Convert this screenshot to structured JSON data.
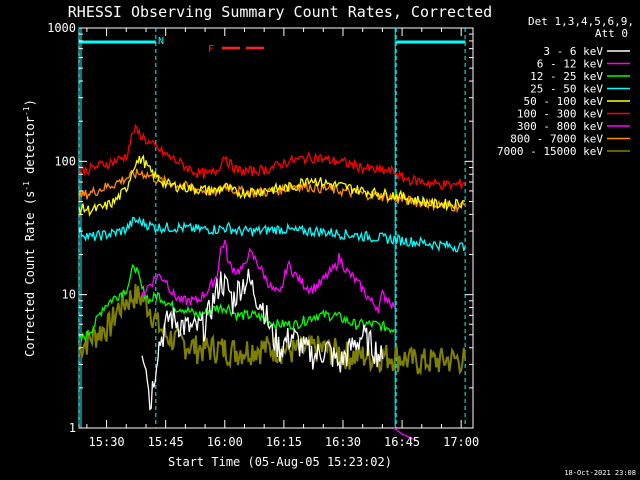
{
  "chart_data": {
    "type": "line",
    "title": "RHESSI Observing Summary Count Rates, Corrected",
    "xlabel": "Start Time (05-Aug-05 15:23:02)",
    "ylabel_main": "Corrected Count Rate (s",
    "ylabel_sup1": "-1",
    "ylabel_mid": " detector",
    "ylabel_sup2": "-1",
    "ylabel_end": ")",
    "yscale": "log",
    "ylim": [
      1,
      1000
    ],
    "xlim_minutes": [
      0,
      100
    ],
    "yticks": [
      {
        "value": 1,
        "label": "1"
      },
      {
        "value": 10,
        "label": "10"
      },
      {
        "value": 100,
        "label": "100"
      },
      {
        "value": 1000,
        "label": "1000"
      }
    ],
    "xticks": [
      {
        "minute": 7,
        "label": "15:30"
      },
      {
        "minute": 22,
        "label": "15:45"
      },
      {
        "minute": 37,
        "label": "16:00"
      },
      {
        "minute": 52,
        "label": "16:15"
      },
      {
        "minute": 67,
        "label": "16:30"
      },
      {
        "minute": 82,
        "label": "16:45"
      },
      {
        "minute": 97,
        "label": "17:00"
      }
    ],
    "detector_info": [
      "Det 1,3,4,5,6,9,",
      "Att 0"
    ],
    "timestamp": "18-Oct-2021 23:08",
    "markers": [
      {
        "label": "N",
        "color": "#00ffff"
      },
      {
        "label": "F",
        "color": "#ff2222"
      }
    ],
    "night_minutes": [
      [
        0,
        19.5
      ],
      [
        80.5,
        98
      ]
    ],
    "flare_minutes": [
      35,
      48
    ],
    "series": [
      {
        "name": "3 - 6 keV",
        "color": "#ffffff",
        "values": [
          [
            16,
            4
          ],
          [
            17,
            3.3
          ],
          [
            18,
            1.5
          ],
          [
            19,
            2.4
          ],
          [
            20,
            4
          ],
          [
            23,
            7
          ],
          [
            26,
            6
          ],
          [
            29,
            5.5
          ],
          [
            32,
            6
          ],
          [
            35,
            11
          ],
          [
            36,
            13
          ],
          [
            38,
            11
          ],
          [
            39,
            9
          ],
          [
            41,
            12
          ],
          [
            43,
            13
          ],
          [
            45,
            10
          ],
          [
            47,
            8
          ],
          [
            49,
            5
          ],
          [
            51,
            4
          ],
          [
            54,
            5
          ],
          [
            57,
            4
          ],
          [
            60,
            3.5
          ],
          [
            63,
            4
          ],
          [
            66,
            3
          ],
          [
            69,
            4
          ],
          [
            72,
            5
          ],
          [
            75,
            4
          ],
          [
            77,
            3.3
          ]
        ]
      },
      {
        "name": "6 - 12 keV",
        "color": "#ff00ff",
        "values": [
          [
            16,
            10
          ],
          [
            18,
            12
          ],
          [
            20,
            14
          ],
          [
            22,
            13
          ],
          [
            24,
            10
          ],
          [
            26,
            9
          ],
          [
            28,
            9
          ],
          [
            30,
            9
          ],
          [
            33,
            11
          ],
          [
            35,
            14
          ],
          [
            36,
            22
          ],
          [
            37,
            25
          ],
          [
            38,
            17
          ],
          [
            40,
            15
          ],
          [
            42,
            16
          ],
          [
            43,
            21
          ],
          [
            45,
            18
          ],
          [
            47,
            14
          ],
          [
            49,
            11
          ],
          [
            51,
            10
          ],
          [
            53,
            17
          ],
          [
            55,
            14
          ],
          [
            57,
            12
          ],
          [
            59,
            11
          ],
          [
            61,
            12
          ],
          [
            63,
            14
          ],
          [
            65,
            16
          ],
          [
            66,
            19
          ],
          [
            67,
            17
          ],
          [
            68,
            15
          ],
          [
            70,
            13
          ],
          [
            72,
            11
          ],
          [
            74,
            9
          ],
          [
            76,
            8
          ],
          [
            77,
            10
          ],
          [
            79,
            9
          ],
          [
            80,
            8
          ]
        ]
      },
      {
        "name": "12 - 25 keV",
        "color": "#00ff00",
        "values": [
          [
            0,
            4.5
          ],
          [
            2,
            5
          ],
          [
            4,
            6
          ],
          [
            6,
            8
          ],
          [
            8,
            9
          ],
          [
            10,
            10
          ],
          [
            12,
            11
          ],
          [
            13,
            13
          ],
          [
            14,
            17
          ],
          [
            15,
            14
          ],
          [
            16,
            11
          ],
          [
            18,
            9
          ],
          [
            20,
            10
          ],
          [
            22,
            9
          ],
          [
            24,
            8
          ],
          [
            26,
            8
          ],
          [
            30,
            7
          ],
          [
            35,
            8
          ],
          [
            38,
            8
          ],
          [
            40,
            7
          ],
          [
            45,
            7
          ],
          [
            50,
            6
          ],
          [
            55,
            6
          ],
          [
            60,
            7
          ],
          [
            65,
            7
          ],
          [
            70,
            6
          ],
          [
            75,
            6
          ],
          [
            80,
            5.5
          ]
        ]
      },
      {
        "name": "25 - 50 keV",
        "color": "#00ffff",
        "values": [
          [
            0,
            30
          ],
          [
            3,
            27
          ],
          [
            6,
            28
          ],
          [
            9,
            29
          ],
          [
            12,
            31
          ],
          [
            14,
            36
          ],
          [
            16,
            35
          ],
          [
            18,
            33
          ],
          [
            20,
            32
          ],
          [
            25,
            32
          ],
          [
            30,
            31
          ],
          [
            35,
            31
          ],
          [
            38,
            32
          ],
          [
            40,
            30
          ],
          [
            45,
            30
          ],
          [
            50,
            31
          ],
          [
            52,
            31
          ],
          [
            55,
            30
          ],
          [
            60,
            30
          ],
          [
            65,
            29
          ],
          [
            70,
            28
          ],
          [
            75,
            27
          ],
          [
            80,
            26
          ],
          [
            85,
            25
          ],
          [
            90,
            24
          ],
          [
            95,
            23
          ],
          [
            98,
            23
          ]
        ]
      },
      {
        "name": "50 - 100 keV",
        "color": "#ffff00",
        "values": [
          [
            0,
            45
          ],
          [
            3,
            43
          ],
          [
            6,
            45
          ],
          [
            9,
            50
          ],
          [
            12,
            62
          ],
          [
            14,
            95
          ],
          [
            16,
            105
          ],
          [
            18,
            85
          ],
          [
            20,
            75
          ],
          [
            22,
            68
          ],
          [
            25,
            65
          ],
          [
            30,
            62
          ],
          [
            35,
            60
          ],
          [
            37,
            65
          ],
          [
            40,
            58
          ],
          [
            45,
            60
          ],
          [
            50,
            62
          ],
          [
            55,
            65
          ],
          [
            58,
            75
          ],
          [
            60,
            72
          ],
          [
            63,
            68
          ],
          [
            67,
            65
          ],
          [
            70,
            62
          ],
          [
            75,
            58
          ],
          [
            80,
            56
          ],
          [
            85,
            52
          ],
          [
            90,
            48
          ],
          [
            95,
            48
          ],
          [
            98,
            50
          ]
        ]
      },
      {
        "name": "100 - 300 keV",
        "color": "#ff0000",
        "values": [
          [
            0,
            85
          ],
          [
            3,
            88
          ],
          [
            6,
            95
          ],
          [
            9,
            100
          ],
          [
            12,
            110
          ],
          [
            14,
            175
          ],
          [
            16,
            155
          ],
          [
            18,
            135
          ],
          [
            20,
            125
          ],
          [
            22,
            112
          ],
          [
            25,
            100
          ],
          [
            28,
            88
          ],
          [
            30,
            82
          ],
          [
            33,
            80
          ],
          [
            35,
            85
          ],
          [
            37,
            112
          ],
          [
            38,
            98
          ],
          [
            40,
            86
          ],
          [
            43,
            84
          ],
          [
            45,
            85
          ],
          [
            48,
            88
          ],
          [
            50,
            92
          ],
          [
            53,
            100
          ],
          [
            55,
            102
          ],
          [
            57,
            105
          ],
          [
            60,
            108
          ],
          [
            63,
            102
          ],
          [
            66,
            100
          ],
          [
            69,
            95
          ],
          [
            72,
            90
          ],
          [
            75,
            86
          ],
          [
            80,
            84
          ],
          [
            82,
            75
          ],
          [
            85,
            72
          ],
          [
            90,
            68
          ],
          [
            95,
            66
          ],
          [
            98,
            70
          ]
        ]
      },
      {
        "name": "300 - 800 keV",
        "color": "#ff00ff",
        "values": [
          [
            80,
            1
          ],
          [
            82,
            0.9
          ],
          [
            86,
            0.8
          ]
        ]
      },
      {
        "name": "800 - 7000 keV",
        "color": "#ff8c00",
        "values": [
          [
            0,
            55
          ],
          [
            3,
            58
          ],
          [
            6,
            63
          ],
          [
            9,
            68
          ],
          [
            12,
            75
          ],
          [
            14,
            80
          ],
          [
            16,
            82
          ],
          [
            18,
            78
          ],
          [
            20,
            73
          ],
          [
            22,
            70
          ],
          [
            25,
            67
          ],
          [
            30,
            62
          ],
          [
            35,
            58
          ],
          [
            37,
            66
          ],
          [
            40,
            60
          ],
          [
            45,
            58
          ],
          [
            50,
            60
          ],
          [
            53,
            64
          ],
          [
            55,
            66
          ],
          [
            60,
            64
          ],
          [
            65,
            61
          ],
          [
            70,
            58
          ],
          [
            75,
            56
          ],
          [
            80,
            53
          ],
          [
            85,
            50
          ],
          [
            90,
            48
          ],
          [
            95,
            46
          ],
          [
            98,
            47
          ]
        ]
      },
      {
        "name": "7000 - 15000 keV",
        "color": "#808000",
        "values": [
          [
            0,
            4
          ],
          [
            2,
            4.5
          ],
          [
            4,
            5
          ],
          [
            6,
            5.5
          ],
          [
            8,
            6
          ],
          [
            10,
            8
          ],
          [
            12,
            9
          ],
          [
            14,
            10
          ],
          [
            16,
            9.5
          ],
          [
            18,
            8
          ],
          [
            20,
            6
          ],
          [
            22,
            5
          ],
          [
            25,
            4.5
          ],
          [
            30,
            4
          ],
          [
            35,
            4
          ],
          [
            40,
            3.8
          ],
          [
            45,
            4
          ],
          [
            50,
            4
          ],
          [
            55,
            3.8
          ],
          [
            60,
            4
          ],
          [
            65,
            3.8
          ],
          [
            70,
            3.5
          ],
          [
            75,
            3.5
          ],
          [
            80,
            3.5
          ],
          [
            85,
            3.2
          ],
          [
            90,
            3.2
          ],
          [
            95,
            3.3
          ],
          [
            98,
            3.3
          ]
        ]
      }
    ],
    "legend_position": "top-right",
    "grid": false
  }
}
